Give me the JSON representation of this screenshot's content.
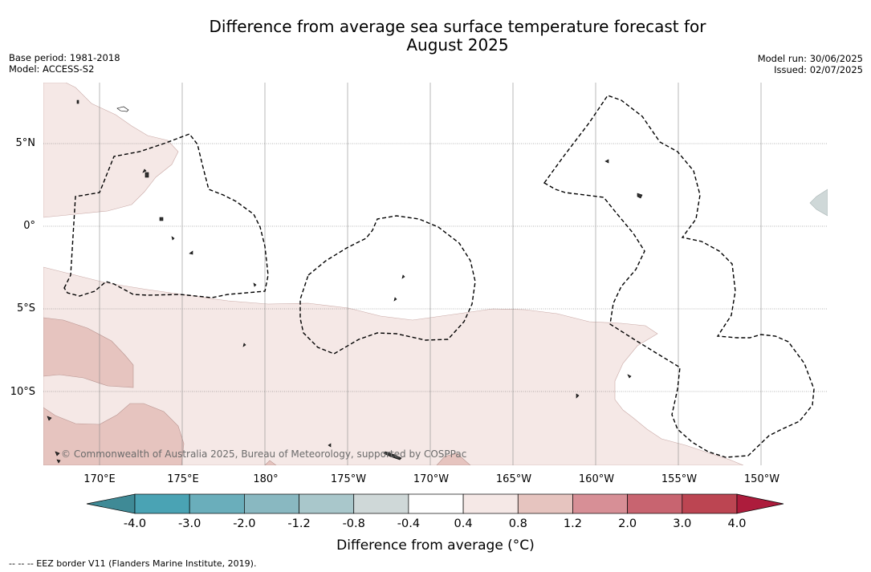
{
  "title_line1": "Difference from average sea surface temperature forecast for",
  "title_line2": "August 2025",
  "base_period": "Base period: 1981-2018",
  "model": "Model: ACCESS-S2",
  "model_run": "Model run: 30/06/2025",
  "issued": "Issued: 02/07/2025",
  "lat_labels": [
    "5°N",
    "0°",
    "5°S",
    "10°S"
  ],
  "lon_labels": [
    "170°E",
    "175°E",
    "180°",
    "175°W",
    "170°W",
    "165°W",
    "160°W",
    "155°W",
    "150°W"
  ],
  "copyright": "© Commonwealth of Australia 2025, Bureau of Meteorology, supported by COSPPac",
  "colorbar": {
    "labels": [
      "-4.0",
      "-3.0",
      "-2.0",
      "-1.2",
      "-0.8",
      "-0.4",
      "0.4",
      "0.8",
      "1.2",
      "2.0",
      "3.0",
      "4.0"
    ],
    "colors": [
      "#3f8a96",
      "#4aa3b4",
      "#6aaebb",
      "#89b8c1",
      "#a9c7cb",
      "#cfd8d8",
      "#ffffff",
      "#f5e8e6",
      "#e6c4bf",
      "#d78f96",
      "#c86470",
      "#bc4552",
      "#ad1c3c"
    ],
    "title": "Difference from average (°C)"
  },
  "footnote": "--  --  -- EEZ border V11 (Flanders Marine Institute, 2019)."
}
